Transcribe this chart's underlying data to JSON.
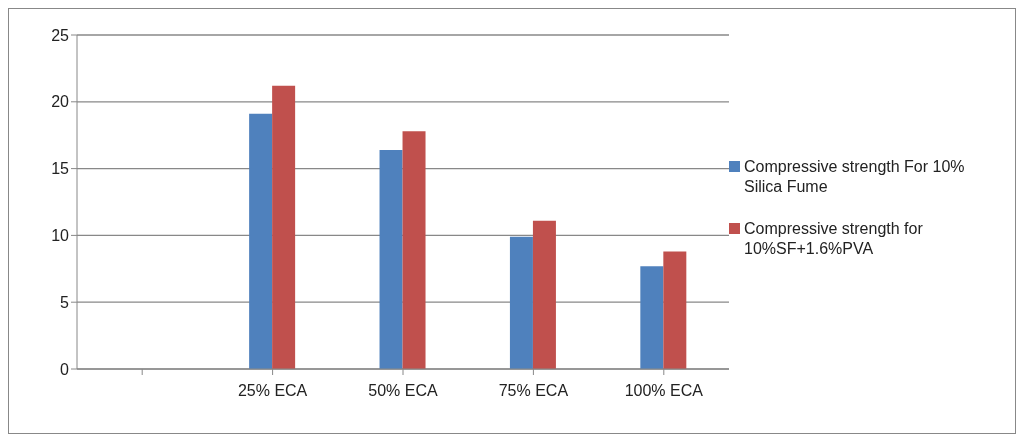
{
  "chart_data": {
    "type": "bar",
    "categories": [
      null,
      "25% ECA",
      "50% ECA",
      "75% ECA",
      "100% ECA"
    ],
    "series": [
      {
        "name": "Compressive strength For 10% Silica Fume",
        "color": "#4f81bd",
        "values": [
          null,
          19.1,
          16.4,
          9.9,
          7.7
        ]
      },
      {
        "name": "Compressive strength for 10%SF+1.6%PVA",
        "color": "#c0504d",
        "values": [
          null,
          21.2,
          17.8,
          11.1,
          8.8
        ]
      }
    ],
    "ylim": [
      0,
      25
    ],
    "yticks": [
      0,
      5,
      10,
      15,
      20,
      25
    ],
    "grid": "y",
    "legend": "right"
  }
}
